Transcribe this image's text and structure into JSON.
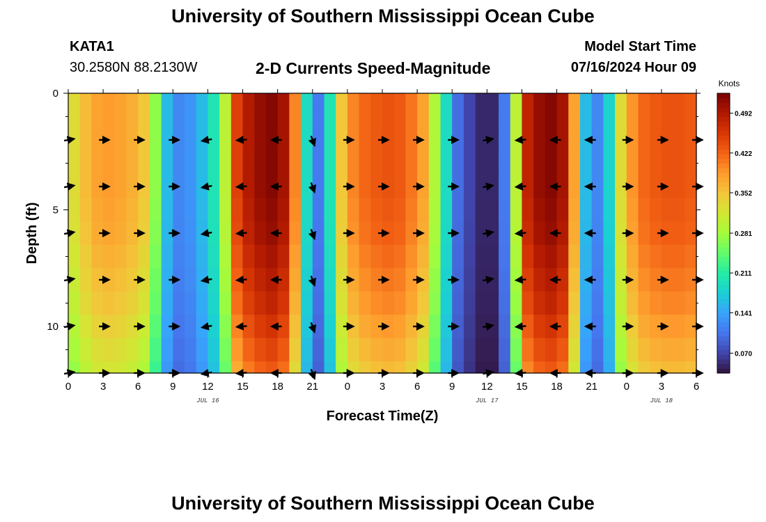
{
  "header": {
    "title": "University of Southern Mississippi Ocean Cube",
    "station": "KATA1",
    "coordinates": "30.2580N  88.2130W",
    "subtitle": "2-D Currents Speed-Magnitude",
    "start_label": "Model Start Time",
    "start_time": "07/16/2024 Hour 09"
  },
  "footer": {
    "title": "University of Southern Mississippi Ocean Cube"
  },
  "colors": {
    "colormap": [
      "#30123b",
      "#4145ab",
      "#4675ed",
      "#39a2fc",
      "#1bcfd4",
      "#24eca6",
      "#61fc6c",
      "#a4fc3b",
      "#d1e834",
      "#f3c63a",
      "#fe9b2d",
      "#f36315",
      "#d93806",
      "#b11901",
      "#7a0402"
    ]
  },
  "chart_data": {
    "type": "heatmap",
    "title": "2-D Currents Speed-Magnitude",
    "xlabel": "Forecast Time(Z)",
    "ylabel": "Depth (ft)",
    "x_range": [
      0,
      54
    ],
    "y_range": [
      0,
      12
    ],
    "x_ticks": [
      0,
      3,
      6,
      9,
      12,
      15,
      18,
      21,
      24,
      27,
      30,
      33,
      36,
      39,
      42,
      45,
      48,
      51,
      54
    ],
    "x_tick_labels": [
      "0",
      "3",
      "6",
      "9",
      "12",
      "15",
      "18",
      "21",
      "0",
      "3",
      "6",
      "9",
      "12",
      "15",
      "18",
      "21",
      "0",
      "3",
      "6"
    ],
    "y_ticks": [
      0,
      5,
      10
    ],
    "y_tick_labels": [
      "0",
      "5",
      "10"
    ],
    "date_labels": [
      {
        "x": 12,
        "text": "JUL 16"
      },
      {
        "x": 36,
        "text": "JUL 17"
      },
      {
        "x": 51,
        "text": "JUL 18"
      }
    ],
    "colorbar": {
      "unit": "Knots",
      "min": 0.035,
      "max": 0.527,
      "tick_values": [
        0.07,
        0.141,
        0.211,
        0.281,
        0.352,
        0.422,
        0.492
      ],
      "tick_labels": [
        "0.070",
        "0.141",
        "0.211",
        "0.281",
        "0.352",
        "0.422",
        "0.492"
      ]
    },
    "speed_by_hour": [
      {
        "hour": 0,
        "speed": 0.33
      },
      {
        "hour": 1,
        "speed": 0.36
      },
      {
        "hour": 2,
        "speed": 0.38
      },
      {
        "hour": 3,
        "speed": 0.385
      },
      {
        "hour": 4,
        "speed": 0.38
      },
      {
        "hour": 5,
        "speed": 0.37
      },
      {
        "hour": 6,
        "speed": 0.35
      },
      {
        "hour": 7,
        "speed": 0.27
      },
      {
        "hour": 8,
        "speed": 0.16
      },
      {
        "hour": 9,
        "speed": 0.12
      },
      {
        "hour": 10,
        "speed": 0.13
      },
      {
        "hour": 11,
        "speed": 0.16
      },
      {
        "hour": 12,
        "speed": 0.2
      },
      {
        "hour": 13,
        "speed": 0.3
      },
      {
        "hour": 14,
        "speed": 0.45
      },
      {
        "hour": 15,
        "speed": 0.49
      },
      {
        "hour": 16,
        "speed": 0.51
      },
      {
        "hour": 17,
        "speed": 0.52
      },
      {
        "hour": 18,
        "speed": 0.5
      },
      {
        "hour": 19,
        "speed": 0.4
      },
      {
        "hour": 20,
        "speed": 0.19
      },
      {
        "hour": 21,
        "speed": 0.11
      },
      {
        "hour": 22,
        "speed": 0.2
      },
      {
        "hour": 23,
        "speed": 0.35
      },
      {
        "hour": 24,
        "speed": 0.4
      },
      {
        "hour": 25,
        "speed": 0.42
      },
      {
        "hour": 26,
        "speed": 0.43
      },
      {
        "hour": 27,
        "speed": 0.435
      },
      {
        "hour": 28,
        "speed": 0.43
      },
      {
        "hour": 29,
        "speed": 0.41
      },
      {
        "hour": 30,
        "speed": 0.38
      },
      {
        "hour": 31,
        "speed": 0.29
      },
      {
        "hour": 32,
        "speed": 0.19
      },
      {
        "hour": 33,
        "speed": 0.1
      },
      {
        "hour": 34,
        "speed": 0.07
      },
      {
        "hour": 35,
        "speed": 0.05
      },
      {
        "hour": 36,
        "speed": 0.05
      },
      {
        "hour": 37,
        "speed": 0.11
      },
      {
        "hour": 38,
        "speed": 0.3
      },
      {
        "hour": 39,
        "speed": 0.48
      },
      {
        "hour": 40,
        "speed": 0.51
      },
      {
        "hour": 41,
        "speed": 0.52
      },
      {
        "hour": 42,
        "speed": 0.5
      },
      {
        "hour": 43,
        "speed": 0.38
      },
      {
        "hour": 44,
        "speed": 0.16
      },
      {
        "hour": 45,
        "speed": 0.12
      },
      {
        "hour": 46,
        "speed": 0.18
      },
      {
        "hour": 47,
        "speed": 0.33
      },
      {
        "hour": 48,
        "speed": 0.39
      },
      {
        "hour": 49,
        "speed": 0.42
      },
      {
        "hour": 50,
        "speed": 0.43
      },
      {
        "hour": 51,
        "speed": 0.435
      },
      {
        "hour": 52,
        "speed": 0.435
      },
      {
        "hour": 53,
        "speed": 0.43
      }
    ],
    "depth_levels_ft": [
      0,
      1,
      2,
      3,
      4,
      5,
      6,
      7,
      8,
      9,
      10,
      11,
      12
    ],
    "depth_factor": [
      1.0,
      1.0,
      1.0,
      1.0,
      1.0,
      0.99,
      0.98,
      0.96,
      0.94,
      0.92,
      0.89,
      0.86,
      0.83
    ],
    "vector_depths_ft": [
      2,
      4,
      6,
      8,
      10,
      12
    ],
    "vectors": [
      {
        "hour": 0,
        "dir_deg": 10
      },
      {
        "hour": 3,
        "dir_deg": 0
      },
      {
        "hour": 6,
        "dir_deg": 0
      },
      {
        "hour": 9,
        "dir_deg": 0
      },
      {
        "hour": 12,
        "dir_deg": 190
      },
      {
        "hour": 15,
        "dir_deg": 185
      },
      {
        "hour": 18,
        "dir_deg": 180
      },
      {
        "hour": 21,
        "dir_deg": 290
      },
      {
        "hour": 24,
        "dir_deg": 0
      },
      {
        "hour": 27,
        "dir_deg": 0
      },
      {
        "hour": 30,
        "dir_deg": 0
      },
      {
        "hour": 33,
        "dir_deg": 0
      },
      {
        "hour": 36,
        "dir_deg": 10
      },
      {
        "hour": 39,
        "dir_deg": 185
      },
      {
        "hour": 42,
        "dir_deg": 180
      },
      {
        "hour": 45,
        "dir_deg": 180
      },
      {
        "hour": 48,
        "dir_deg": 0
      },
      {
        "hour": 51,
        "dir_deg": 0
      },
      {
        "hour": 54,
        "dir_deg": 0
      }
    ]
  }
}
